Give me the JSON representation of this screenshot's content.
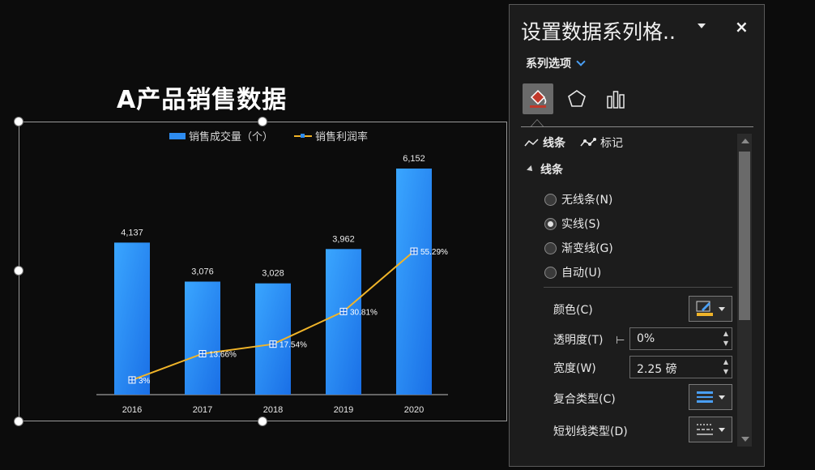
{
  "slide": {
    "title": "A产品销售数据"
  },
  "legend": {
    "bar_label": "销售成交量（个）",
    "line_label": "销售利润率"
  },
  "chart_data": {
    "type": "bar",
    "categories": [
      "2016",
      "2017",
      "2018",
      "2019",
      "2020"
    ],
    "series": [
      {
        "name": "销售成交量（个）",
        "type": "bar",
        "values": [
          4137,
          3076,
          3028,
          3962,
          6152
        ],
        "labels": [
          "4,137",
          "3,076",
          "3,028",
          "3,962",
          "6,152"
        ]
      },
      {
        "name": "销售利润率",
        "type": "line",
        "values": [
          3,
          13.66,
          17.54,
          30.81,
          55.29
        ],
        "labels": [
          "3%",
          "13.66%",
          "17.54%",
          "30.81%",
          "55.29%"
        ]
      }
    ],
    "title": "A产品销售数据",
    "colors": {
      "bar": "#2e8cf0",
      "line": "#f0b429"
    }
  },
  "panel": {
    "title": "设置数据系列格..",
    "close": "×",
    "series_options": "系列选项",
    "tabs": [
      "fill-line-icon",
      "effects-icon",
      "series-options-icon"
    ],
    "sub_tabs": {
      "line": "线条",
      "marker": "标记"
    },
    "section": "线条",
    "radios": [
      {
        "label": "无线条(N)",
        "checked": false
      },
      {
        "label": "实线(S)",
        "checked": true
      },
      {
        "label": "渐变线(G)",
        "checked": false
      },
      {
        "label": "自动(U)",
        "checked": false
      }
    ],
    "color_label": "颜色(C)",
    "transparency_label": "透明度(T)",
    "transparency_value": "0%",
    "width_label": "宽度(W)",
    "width_value": "2.25 磅",
    "compound_label": "复合类型(C)",
    "dash_label": "短划线类型(D)",
    "line_color": "#f0b429"
  }
}
